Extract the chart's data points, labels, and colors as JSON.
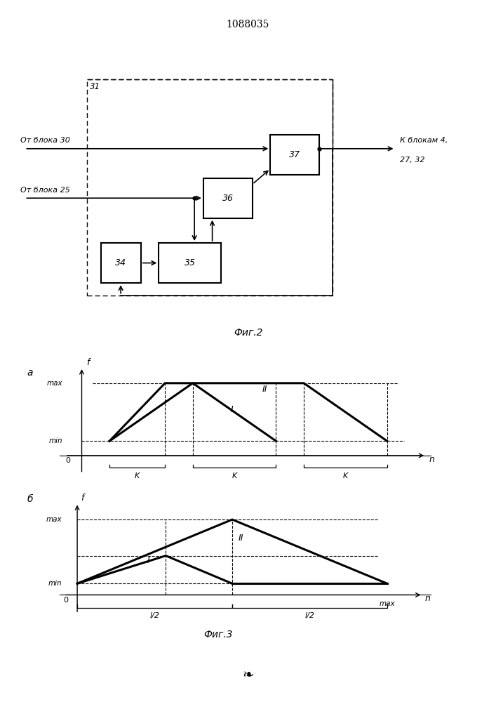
{
  "title": "1088035",
  "fig2_caption": "Фиг.2",
  "fig3_caption": "Фиг.3",
  "bg": "white"
}
